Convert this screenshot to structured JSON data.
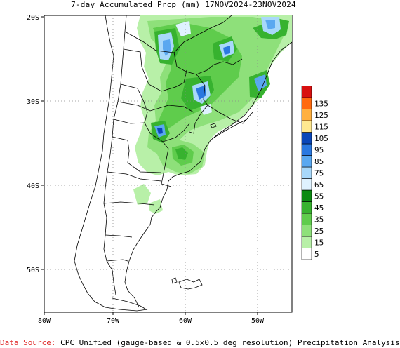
{
  "title": "7-day Accumulated Prcp (mm) 17NOV2024-23NOV2024",
  "source_label": "Data Source:",
  "source_text": " CPC Unified (gauge-based & 0.5x0.5 deg resolution) Precipitation Analysis",
  "axes": {
    "lat_labels": [
      "20S",
      "30S",
      "40S",
      "50S"
    ],
    "lon_labels": [
      "80W",
      "70W",
      "60W",
      "50W"
    ]
  },
  "legend": {
    "bins": [
      {
        "label": "5",
        "color": "#ffffff"
      },
      {
        "label": "15",
        "color": "#b8f0a8"
      },
      {
        "label": "25",
        "color": "#8ee07a"
      },
      {
        "label": "35",
        "color": "#5fcc4c"
      },
      {
        "label": "45",
        "color": "#37b22f"
      },
      {
        "label": "55",
        "color": "#0c8a12"
      },
      {
        "label": "65",
        "color": "#dff2ff"
      },
      {
        "label": "75",
        "color": "#a8d8fa"
      },
      {
        "label": "85",
        "color": "#5aa8f0"
      },
      {
        "label": "95",
        "color": "#2a78e0"
      },
      {
        "label": "105",
        "color": "#0a46b8"
      },
      {
        "label": "115",
        "color": "#ffe890"
      },
      {
        "label": "125",
        "color": "#ffb040"
      },
      {
        "label": "135",
        "color": "#ff6a10"
      },
      {
        "label": "",
        "color": "#d81010"
      }
    ]
  }
}
